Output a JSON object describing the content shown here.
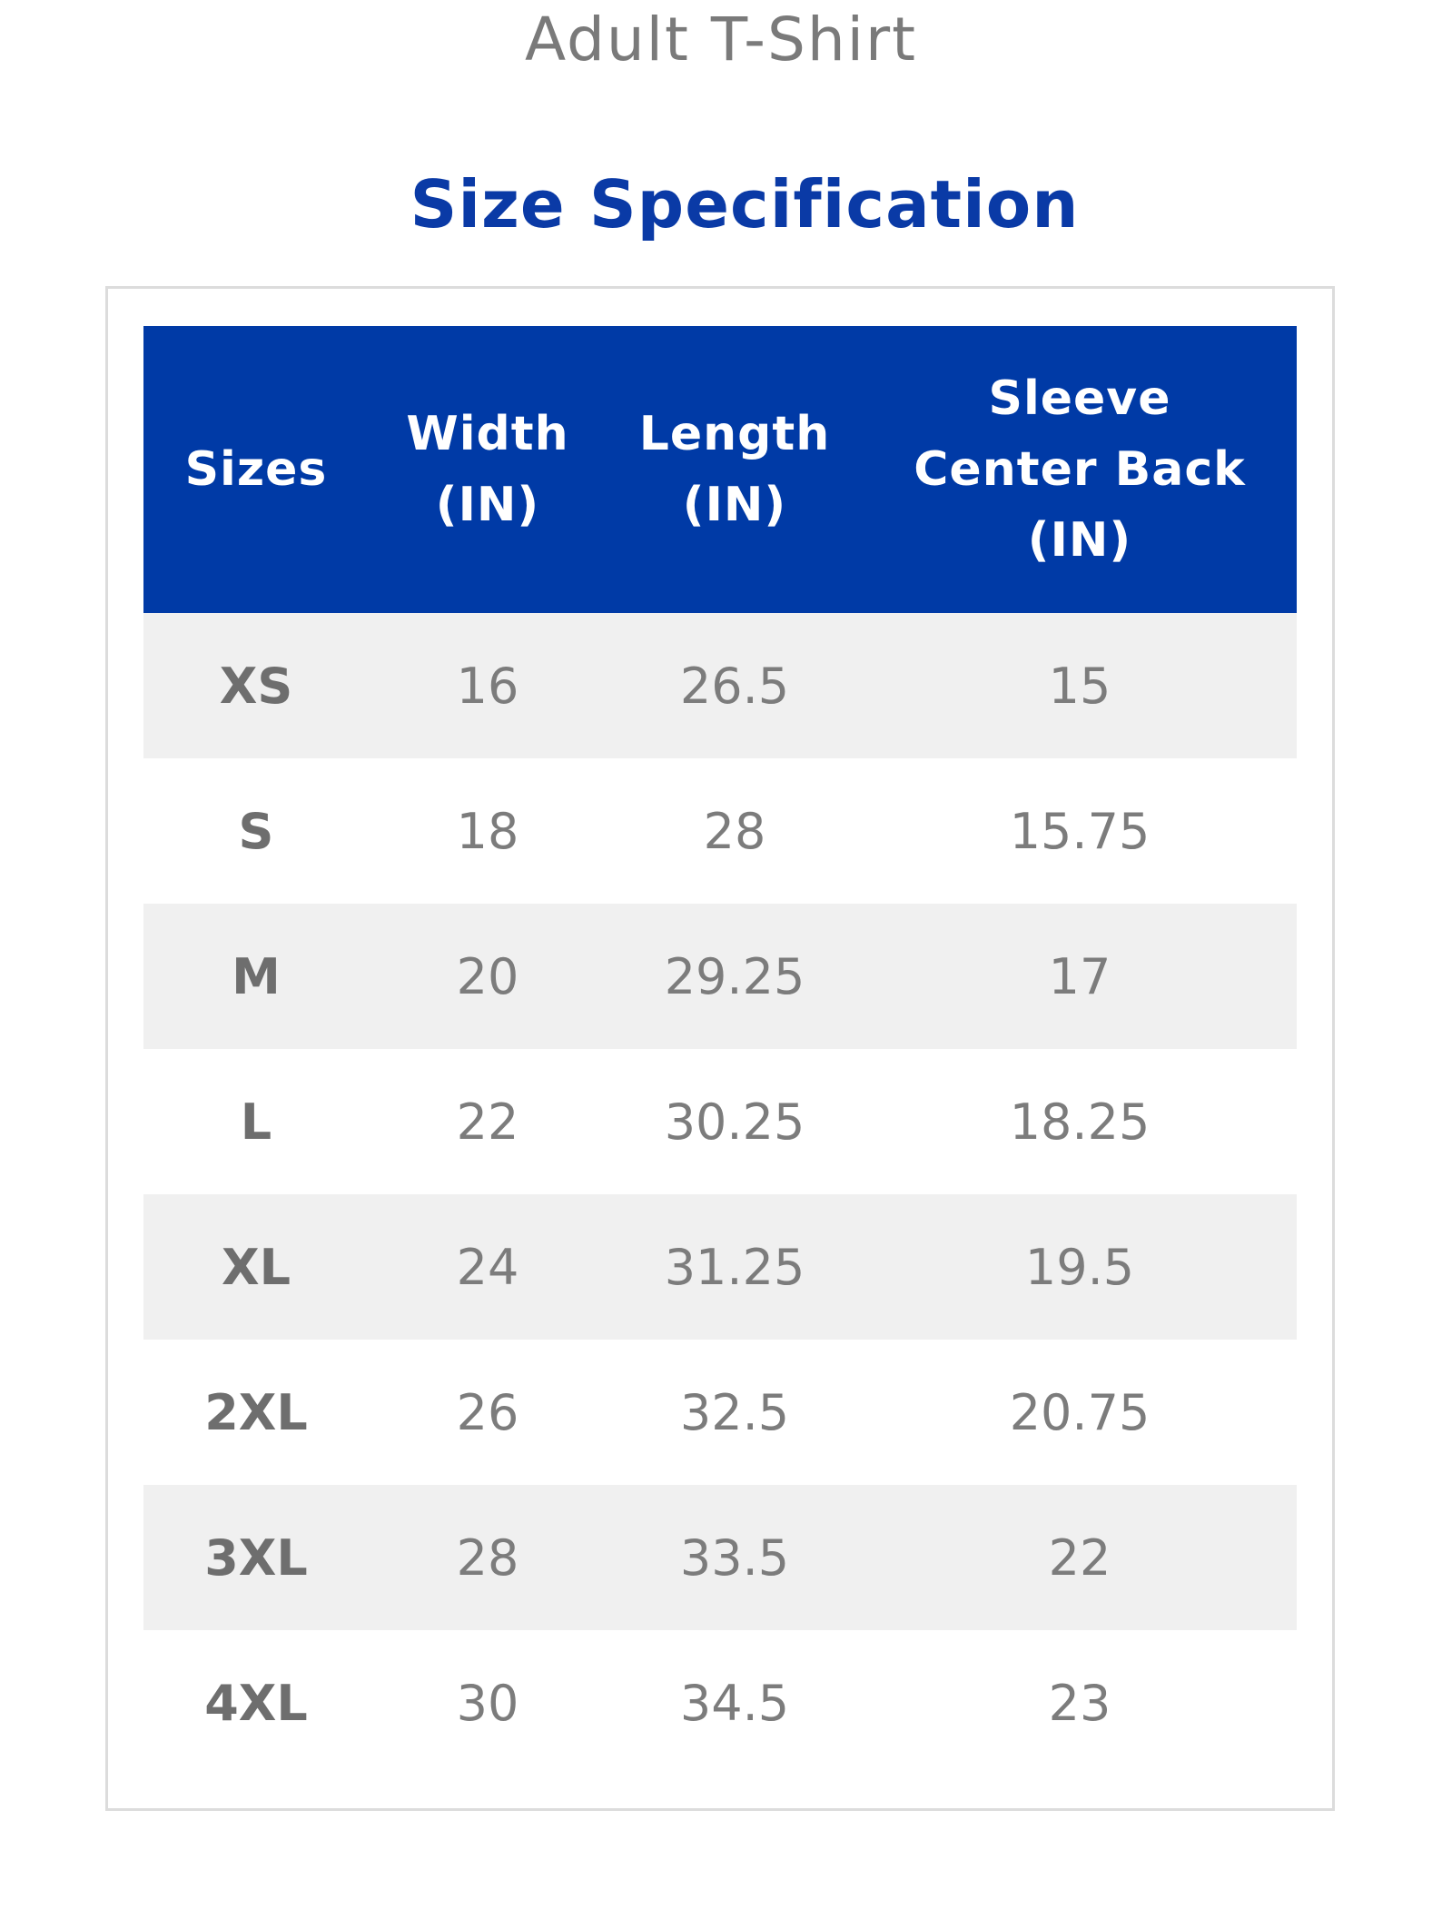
{
  "page": {
    "title": "Adult T-Shirt",
    "section_title": "Size Specification"
  },
  "colors": {
    "header_background": "#003aa6",
    "section_title": "#0a3aa6",
    "row_shade": "#f0f0f0",
    "frame_border": "#dcdcdc",
    "body_text": "#7c7c7c"
  },
  "table": {
    "headers": [
      {
        "lines": [
          "Sizes"
        ]
      },
      {
        "lines": [
          "Width",
          "(IN)"
        ]
      },
      {
        "lines": [
          "Length",
          "(IN)"
        ]
      },
      {
        "lines": [
          "Sleeve",
          "Center Back",
          "(IN)"
        ]
      }
    ],
    "rows": [
      [
        "XS",
        "16",
        "26.5",
        "15"
      ],
      [
        "S",
        "18",
        "28",
        "15.75"
      ],
      [
        "M",
        "20",
        "29.25",
        "17"
      ],
      [
        "L",
        "22",
        "30.25",
        "18.25"
      ],
      [
        "XL",
        "24",
        "31.25",
        "19.5"
      ],
      [
        "2XL",
        "26",
        "32.5",
        "20.75"
      ],
      [
        "3XL",
        "28",
        "33.5",
        "22"
      ],
      [
        "4XL",
        "30",
        "34.5",
        "23"
      ]
    ]
  }
}
